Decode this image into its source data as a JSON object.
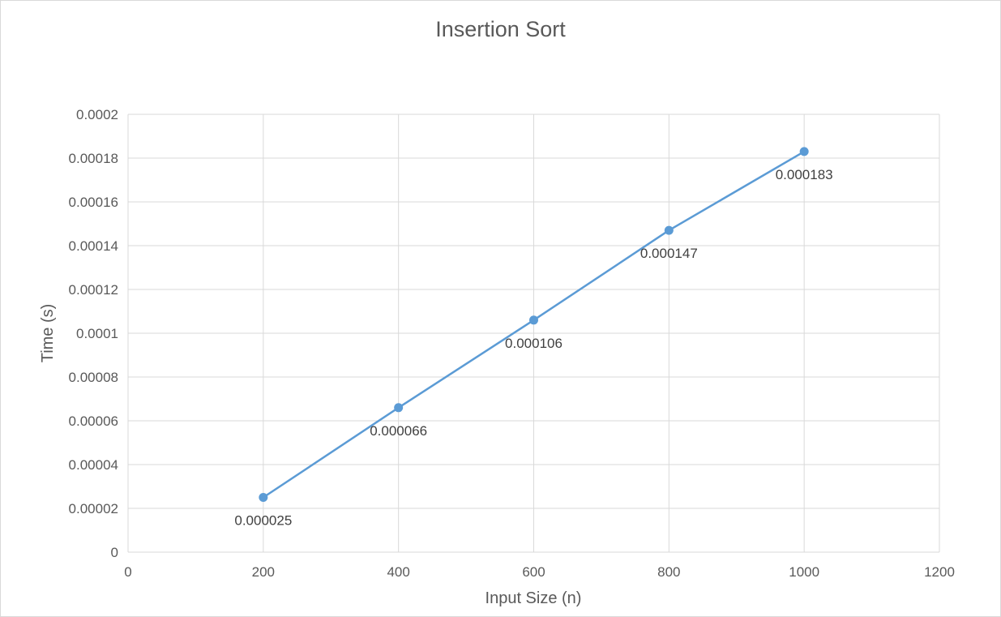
{
  "chart_data": {
    "type": "scatter",
    "title": "Insertion Sort",
    "xlabel": "Input Size (n)",
    "ylabel": "Time (s)",
    "xlim": [
      0,
      1200
    ],
    "ylim": [
      0,
      0.0002
    ],
    "x_ticks": [
      "0",
      "200",
      "400",
      "600",
      "800",
      "1000",
      "1200"
    ],
    "y_ticks": [
      "0",
      "0.00002",
      "0.00004",
      "0.00006",
      "0.00008",
      "0.0001",
      "0.00012",
      "0.00014",
      "0.00016",
      "0.00018",
      "0.0002"
    ],
    "grid": true,
    "legend": "none",
    "line_style": "straight lines with markers",
    "series": [
      {
        "x": [
          200,
          400,
          600,
          800,
          1000
        ],
        "y": [
          2.5e-05,
          6.6e-05,
          0.000106,
          0.000147,
          0.000183
        ],
        "labels": [
          "0.000025",
          "0.000066",
          "0.000106",
          "0.000147",
          "0.000183"
        ],
        "color": "#5b9bd5"
      }
    ]
  }
}
